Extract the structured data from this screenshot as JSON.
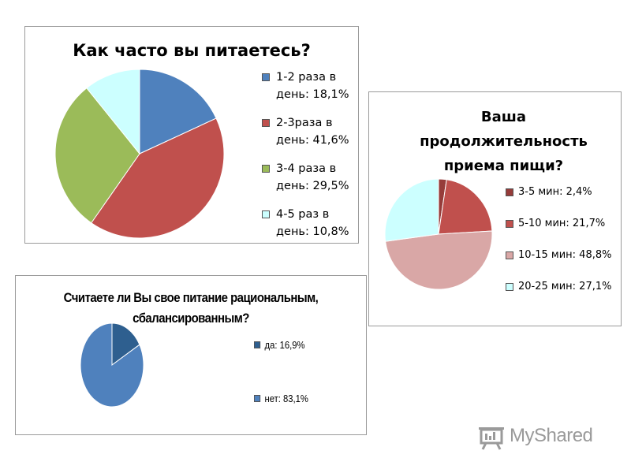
{
  "chart_data": [
    {
      "type": "pie",
      "title": "Как часто вы питаетесь?",
      "slices": [
        {
          "label": "1-2 раза в день: 18,1%",
          "lines": [
            "1-2 раза в",
            "день: 18,1%"
          ],
          "value": 18.1,
          "color": "#4f81bd"
        },
        {
          "label": "2-3раза в день: 41,6%",
          "lines": [
            "2-3раза в",
            "день: 41,6%"
          ],
          "value": 41.6,
          "color": "#c0504d"
        },
        {
          "label": "3-4 раза в день: 29,5%",
          "lines": [
            "3-4 раза в",
            "день: 29,5%"
          ],
          "value": 29.5,
          "color": "#9bbb59"
        },
        {
          "label": "4-5 раз в день: 10,8%",
          "lines": [
            "4-5 раз в",
            "день: 10,8%"
          ],
          "value": 10.8,
          "color": "#ccffff"
        }
      ],
      "legend": "right"
    },
    {
      "type": "pie",
      "title": "Ваша продолжительность приема пищи?",
      "title_lines": [
        "Ваша",
        "продолжительность",
        "приема пищи?"
      ],
      "slices": [
        {
          "label": "3-5 мин: 2,4%",
          "lines": [
            "3-5 мин: 2,4%"
          ],
          "value": 2.4,
          "color": "#963c3a"
        },
        {
          "label": "5-10 мин: 21,7%",
          "lines": [
            "5-10 мин: 21,7%"
          ],
          "value": 21.7,
          "color": "#c0504d"
        },
        {
          "label": "10-15 мин: 48,8%",
          "lines": [
            "10-15 мин: 48,8%"
          ],
          "value": 48.8,
          "color": "#d9a7a6"
        },
        {
          "label": "20-25 мин: 27,1%",
          "lines": [
            "20-25 мин: 27,1%"
          ],
          "value": 27.1,
          "color": "#ccffff"
        }
      ],
      "legend": "right"
    },
    {
      "type": "pie",
      "title": "Считаете ли Вы свое питание рациональным, сбалансированным?",
      "title_lines": [
        "Считаете ли Вы свое питание рациональным,",
        "сбалансированным?"
      ],
      "slices": [
        {
          "label": "да: 16,9%",
          "lines": [
            "да: 16,9%"
          ],
          "value": 16.9,
          "color": "#2e5f8f"
        },
        {
          "label": "нет:  83,1%",
          "lines": [
            "нет:  83,1%"
          ],
          "value": 83.1,
          "color": "#4f81bd"
        }
      ],
      "legend": "right"
    }
  ],
  "logo": {
    "text": "MyShared",
    "icon": "presentation-board-icon"
  }
}
